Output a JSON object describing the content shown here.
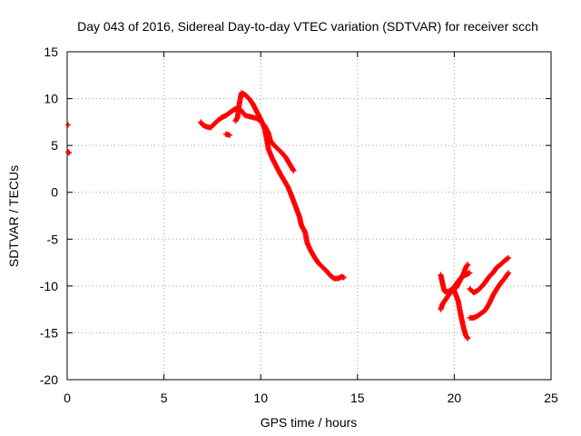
{
  "chart_data": {
    "type": "scatter",
    "title": "Day 043 of 2016, Sidereal Day-to-day VTEC variation (SDTVAR) for receiver scch",
    "xlabel": "GPS time / hours",
    "ylabel": "SDTVAR / TECUs",
    "xlim": [
      0,
      25
    ],
    "ylim": [
      -20,
      15
    ],
    "x_ticks": [
      0,
      5,
      10,
      15,
      20,
      25
    ],
    "y_ticks": [
      -20,
      -15,
      -10,
      -5,
      0,
      5,
      10,
      15
    ],
    "grid": true,
    "grid_style": "dotted",
    "marker": "+",
    "color": "#ff0000",
    "series": [
      {
        "segments": [
          [
            [
              0.05,
              7.2
            ]
          ],
          [
            [
              0.05,
              4.3
            ],
            [
              0.1,
              4.2
            ]
          ],
          [
            [
              6.9,
              7.5
            ],
            [
              7.0,
              7.2
            ],
            [
              7.2,
              7.0
            ],
            [
              7.4,
              6.9
            ],
            [
              7.6,
              7.3
            ],
            [
              7.8,
              7.7
            ],
            [
              8.0,
              8.0
            ],
            [
              8.2,
              8.2
            ],
            [
              8.4,
              8.5
            ],
            [
              8.6,
              8.8
            ],
            [
              8.8,
              9.0
            ],
            [
              9.0,
              8.7
            ],
            [
              9.2,
              8.2
            ],
            [
              9.4,
              8.1
            ],
            [
              9.6,
              8.0
            ],
            [
              9.8,
              7.9
            ],
            [
              10.0,
              7.6
            ],
            [
              10.2,
              7.1
            ],
            [
              10.4,
              6.3
            ],
            [
              10.5,
              5.5
            ],
            [
              10.7,
              5.0
            ],
            [
              10.9,
              4.6
            ],
            [
              11.1,
              4.2
            ],
            [
              11.3,
              3.7
            ],
            [
              11.5,
              3.0
            ],
            [
              11.7,
              2.3
            ]
          ],
          [
            [
              8.2,
              6.2
            ],
            [
              8.4,
              6.1
            ]
          ],
          [
            [
              8.7,
              7.6
            ],
            [
              8.8,
              8.0
            ],
            [
              8.9,
              9.5
            ],
            [
              9.0,
              10.6
            ],
            [
              9.2,
              10.4
            ],
            [
              9.4,
              10.0
            ],
            [
              9.6,
              9.4
            ],
            [
              9.8,
              8.6
            ],
            [
              10.0,
              7.8
            ],
            [
              10.2,
              6.8
            ],
            [
              10.3,
              5.8
            ],
            [
              10.4,
              4.6
            ],
            [
              10.6,
              3.6
            ],
            [
              10.8,
              2.8
            ],
            [
              11.0,
              2.0
            ],
            [
              11.2,
              1.3
            ],
            [
              11.4,
              0.6
            ],
            [
              11.6,
              -0.4
            ],
            [
              11.8,
              -1.5
            ],
            [
              12.0,
              -2.6
            ],
            [
              12.1,
              -3.5
            ],
            [
              12.3,
              -4.3
            ],
            [
              12.4,
              -5.4
            ],
            [
              12.6,
              -6.3
            ],
            [
              12.8,
              -7.0
            ],
            [
              13.0,
              -7.6
            ],
            [
              13.2,
              -8.0
            ],
            [
              13.4,
              -8.4
            ],
            [
              13.6,
              -8.9
            ],
            [
              13.8,
              -9.2
            ],
            [
              14.0,
              -9.2
            ],
            [
              14.2,
              -9.0
            ],
            [
              14.3,
              -9.1
            ]
          ],
          [
            [
              19.3,
              -8.8
            ],
            [
              19.4,
              -9.8
            ],
            [
              19.5,
              -10.6
            ],
            [
              19.7,
              -10.6
            ],
            [
              19.9,
              -10.3
            ],
            [
              20.1,
              -10.2
            ],
            [
              20.3,
              -9.4
            ],
            [
              20.5,
              -8.6
            ],
            [
              20.6,
              -8.0
            ],
            [
              20.7,
              -7.7
            ]
          ],
          [
            [
              19.3,
              -12.5
            ],
            [
              19.4,
              -11.9
            ],
            [
              19.6,
              -11.3
            ],
            [
              19.8,
              -10.7
            ],
            [
              20.0,
              -10.1
            ],
            [
              20.2,
              -9.5
            ],
            [
              20.4,
              -9.0
            ],
            [
              20.6,
              -8.8
            ],
            [
              20.8,
              -8.6
            ]
          ],
          [
            [
              20.0,
              -10.5
            ],
            [
              20.2,
              -11.6
            ],
            [
              20.3,
              -12.7
            ],
            [
              20.4,
              -13.7
            ],
            [
              20.5,
              -14.6
            ],
            [
              20.6,
              -15.3
            ],
            [
              20.7,
              -15.6
            ]
          ],
          [
            [
              20.8,
              -10.3
            ],
            [
              21.0,
              -10.7
            ],
            [
              21.2,
              -10.5
            ],
            [
              21.4,
              -10.1
            ],
            [
              21.6,
              -9.6
            ],
            [
              21.8,
              -9.0
            ],
            [
              22.0,
              -8.6
            ],
            [
              22.2,
              -8.0
            ],
            [
              22.4,
              -7.7
            ],
            [
              22.6,
              -7.3
            ],
            [
              22.8,
              -7.0
            ]
          ],
          [
            [
              20.8,
              -13.4
            ],
            [
              21.0,
              -13.4
            ],
            [
              21.2,
              -13.2
            ],
            [
              21.4,
              -12.9
            ],
            [
              21.6,
              -12.6
            ],
            [
              21.8,
              -11.9
            ],
            [
              22.0,
              -11.0
            ],
            [
              22.2,
              -10.3
            ],
            [
              22.4,
              -9.7
            ],
            [
              22.6,
              -9.2
            ],
            [
              22.8,
              -8.6
            ]
          ]
        ]
      }
    ]
  }
}
